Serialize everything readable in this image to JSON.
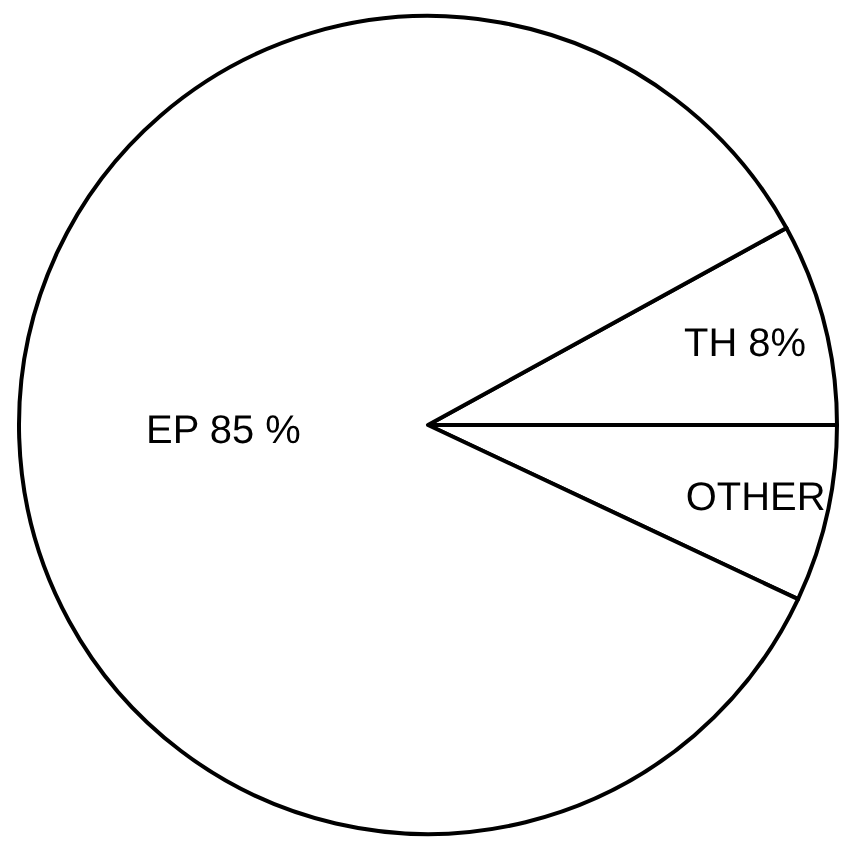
{
  "chart_data": {
    "type": "pie",
    "categories": [
      "OTHER",
      "TH 8%",
      "EP 85 %"
    ],
    "values": [
      7,
      8,
      85
    ],
    "colors": [
      "#ffffff",
      "#ffffff",
      "#ffffff"
    ],
    "legend": false
  }
}
